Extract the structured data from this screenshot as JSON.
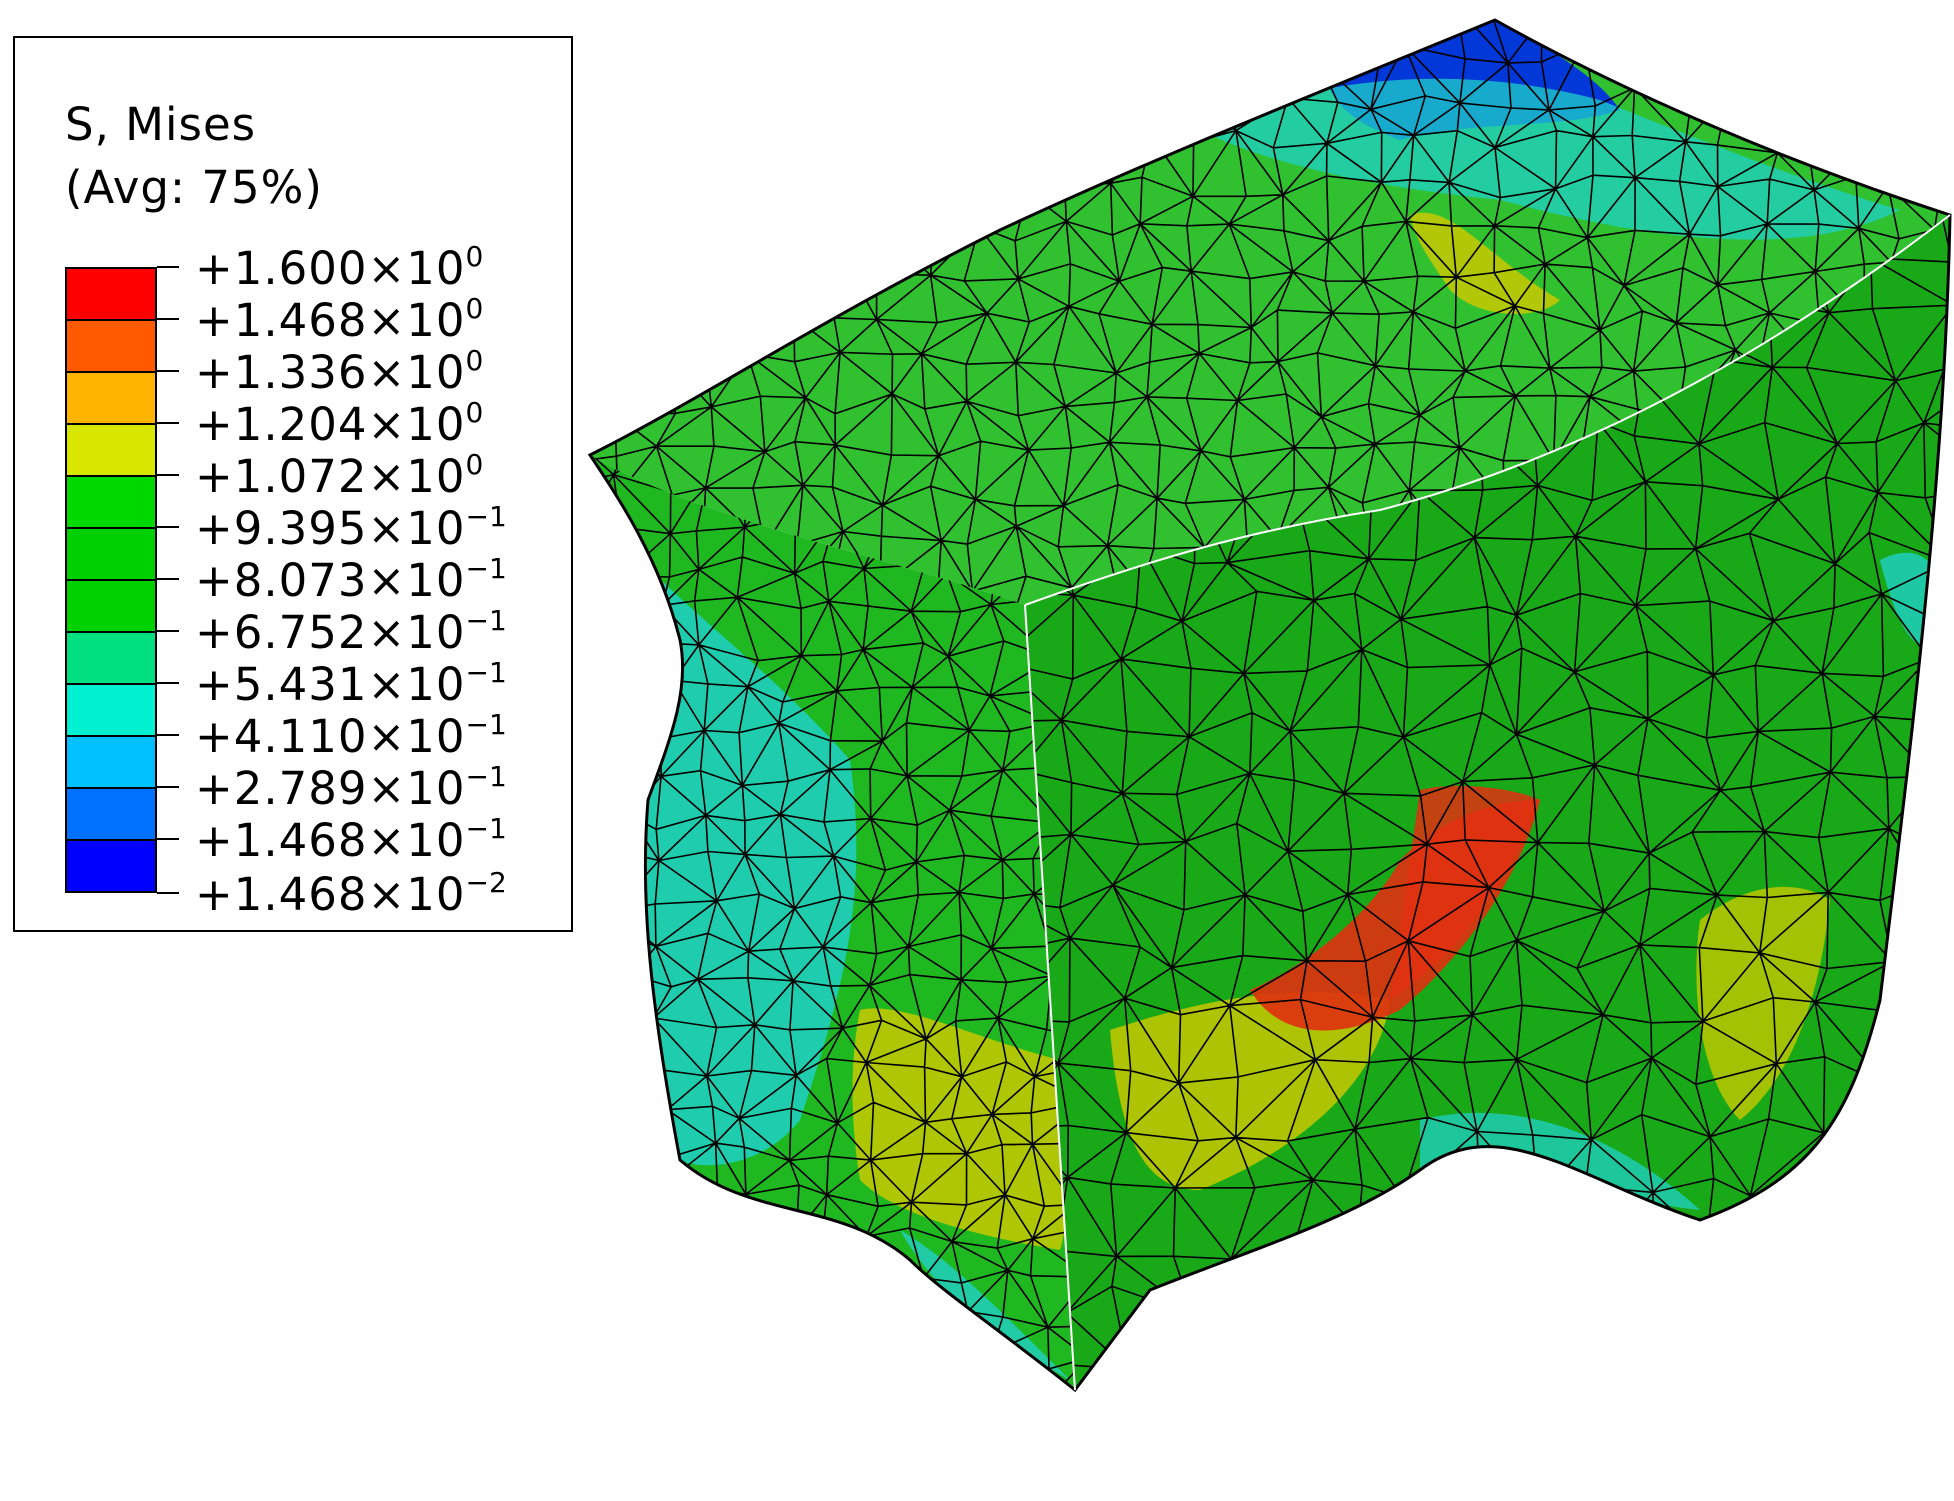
{
  "legend": {
    "title_line1": "S, Mises",
    "title_line2": "(Avg: 75%)",
    "entries": [
      {
        "mantissa": "+1.600",
        "times": "×10",
        "exp": "0"
      },
      {
        "mantissa": "+1.468",
        "times": "×10",
        "exp": "0"
      },
      {
        "mantissa": "+1.336",
        "times": "×10",
        "exp": "0"
      },
      {
        "mantissa": "+1.204",
        "times": "×10",
        "exp": "0"
      },
      {
        "mantissa": "+1.072",
        "times": "×10",
        "exp": "0"
      },
      {
        "mantissa": "+9.395",
        "times": "×10",
        "exp": "−1"
      },
      {
        "mantissa": "+8.073",
        "times": "×10",
        "exp": "−1"
      },
      {
        "mantissa": "+6.752",
        "times": "×10",
        "exp": "−1"
      },
      {
        "mantissa": "+5.431",
        "times": "×10",
        "exp": "−1"
      },
      {
        "mantissa": "+4.110",
        "times": "×10",
        "exp": "−1"
      },
      {
        "mantissa": "+2.789",
        "times": "×10",
        "exp": "−1"
      },
      {
        "mantissa": "+1.468",
        "times": "×10",
        "exp": "−1"
      },
      {
        "mantissa": "+1.468",
        "times": "×10",
        "exp": "−2"
      }
    ],
    "band_colors": [
      "#ff0000",
      "#ff5a00",
      "#ffb400",
      "#d8e600",
      "#00d800",
      "#00d000",
      "#00d200",
      "#00e080",
      "#00f0d0",
      "#00c0ff",
      "#0070ff",
      "#0000ff"
    ]
  },
  "model": {
    "base_color": "#20b820",
    "front_face_color": "#18a818",
    "top_face_color": "#30c030",
    "left_face_color": "#20b820",
    "hot_zone_color": "#e03010",
    "warm_zone_color": "#c8c800",
    "cool_zone_color": "#20d0c8",
    "cold_zone_color": "#0030e0",
    "mesh_line_color": "#000000"
  }
}
